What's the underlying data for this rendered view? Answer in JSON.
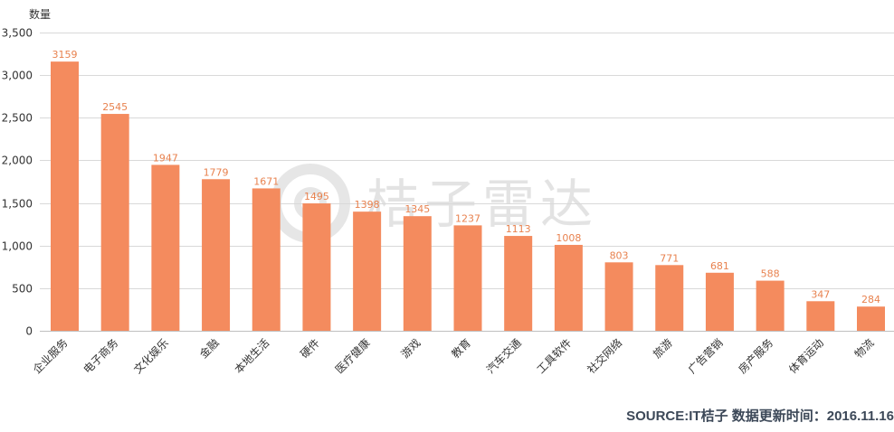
{
  "chart_data": {
    "type": "bar",
    "ylabel": "数量",
    "ylim": [
      0,
      3500
    ],
    "yticks": [
      0,
      500,
      1000,
      1500,
      2000,
      2500,
      3000,
      3500
    ],
    "ytick_labels": [
      "0",
      "500",
      "1,000",
      "1,500",
      "2,000",
      "2,500",
      "3,000",
      "3,500"
    ],
    "grid": true,
    "categories": [
      "企业服务",
      "电子商务",
      "文化娱乐",
      "金融",
      "本地生活",
      "硬件",
      "医疗健康",
      "游戏",
      "教育",
      "汽车交通",
      "工具软件",
      "社交网络",
      "旅游",
      "广告营销",
      "房产服务",
      "体育运动",
      "物流"
    ],
    "values": [
      3159,
      2545,
      1947,
      1779,
      1671,
      1495,
      1398,
      1345,
      1237,
      1113,
      1008,
      803,
      771,
      681,
      588,
      347,
      284
    ],
    "data_labels": [
      "3159",
      "2545",
      "1947",
      "1779",
      "1671",
      "1495",
      "1398",
      "1345",
      "1237",
      "1113",
      "1008",
      "803",
      "771",
      "681",
      "588",
      "347",
      "284"
    ],
    "colors": {
      "bar": "#f48b5e",
      "data_label": "#e8824f",
      "grid": "#d9d9d9",
      "axis": "#bfbfbf"
    }
  },
  "watermark": {
    "text": "桔子雷达"
  },
  "footer": {
    "source": "SOURCE:IT桔子 数据更新时间：2016.11.16"
  }
}
